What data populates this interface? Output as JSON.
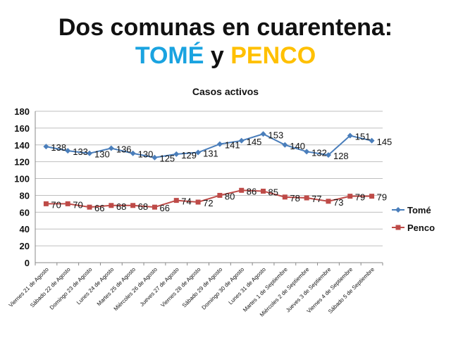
{
  "header": {
    "title_line1": "Dos comunas en cuarentena:",
    "title_tome": "TOMÉ",
    "title_connector": "y",
    "title_penco": "PENCO"
  },
  "colors": {
    "tome_title": "#1aa3e0",
    "penco_title": "#ffc000",
    "tome_series": "#4a7ebb",
    "penco_series": "#be4b48",
    "grid": "#bfbfbf"
  },
  "chart_data": {
    "type": "line",
    "title": "Casos activos",
    "xlabel": "",
    "ylabel": "",
    "ylim": [
      0,
      180
    ],
    "yticks": [
      0,
      20,
      40,
      60,
      80,
      100,
      120,
      140,
      160,
      180
    ],
    "grid": true,
    "legend_position": "right",
    "categories": [
      "Viernes 21 de Agosto",
      "Sábado 22 de Agosto",
      "Domingo 23 de Agosto",
      "Lunes 24 de Agosto",
      "Martes 25 de Agosto",
      "Miércoles 26 de Agosto",
      "Jueves 27 de Agosto",
      "Viernes 28 de Agosto",
      "Sábado 29 de Agosto",
      "Domingo 30 de Agosto",
      "Lunes 31 de Agosto",
      "Martes 1 de Septiembre",
      "Miércoles 2 de Septiembre",
      "Jueves 3 de Septiembre",
      "Viernes 4 de Septiembre",
      "Sábado 5 de Septiembre"
    ],
    "series": [
      {
        "name": "Tomé",
        "color": "#4a7ebb",
        "marker": "diamond",
        "values": [
          138,
          133,
          130,
          136,
          130,
          125,
          129,
          131,
          141,
          145,
          153,
          140,
          132,
          128,
          151,
          145
        ]
      },
      {
        "name": "Penco",
        "color": "#be4b48",
        "marker": "square",
        "values": [
          70,
          70,
          66,
          68,
          68,
          66,
          74,
          72,
          80,
          86,
          85,
          78,
          77,
          73,
          79,
          79
        ]
      }
    ]
  }
}
